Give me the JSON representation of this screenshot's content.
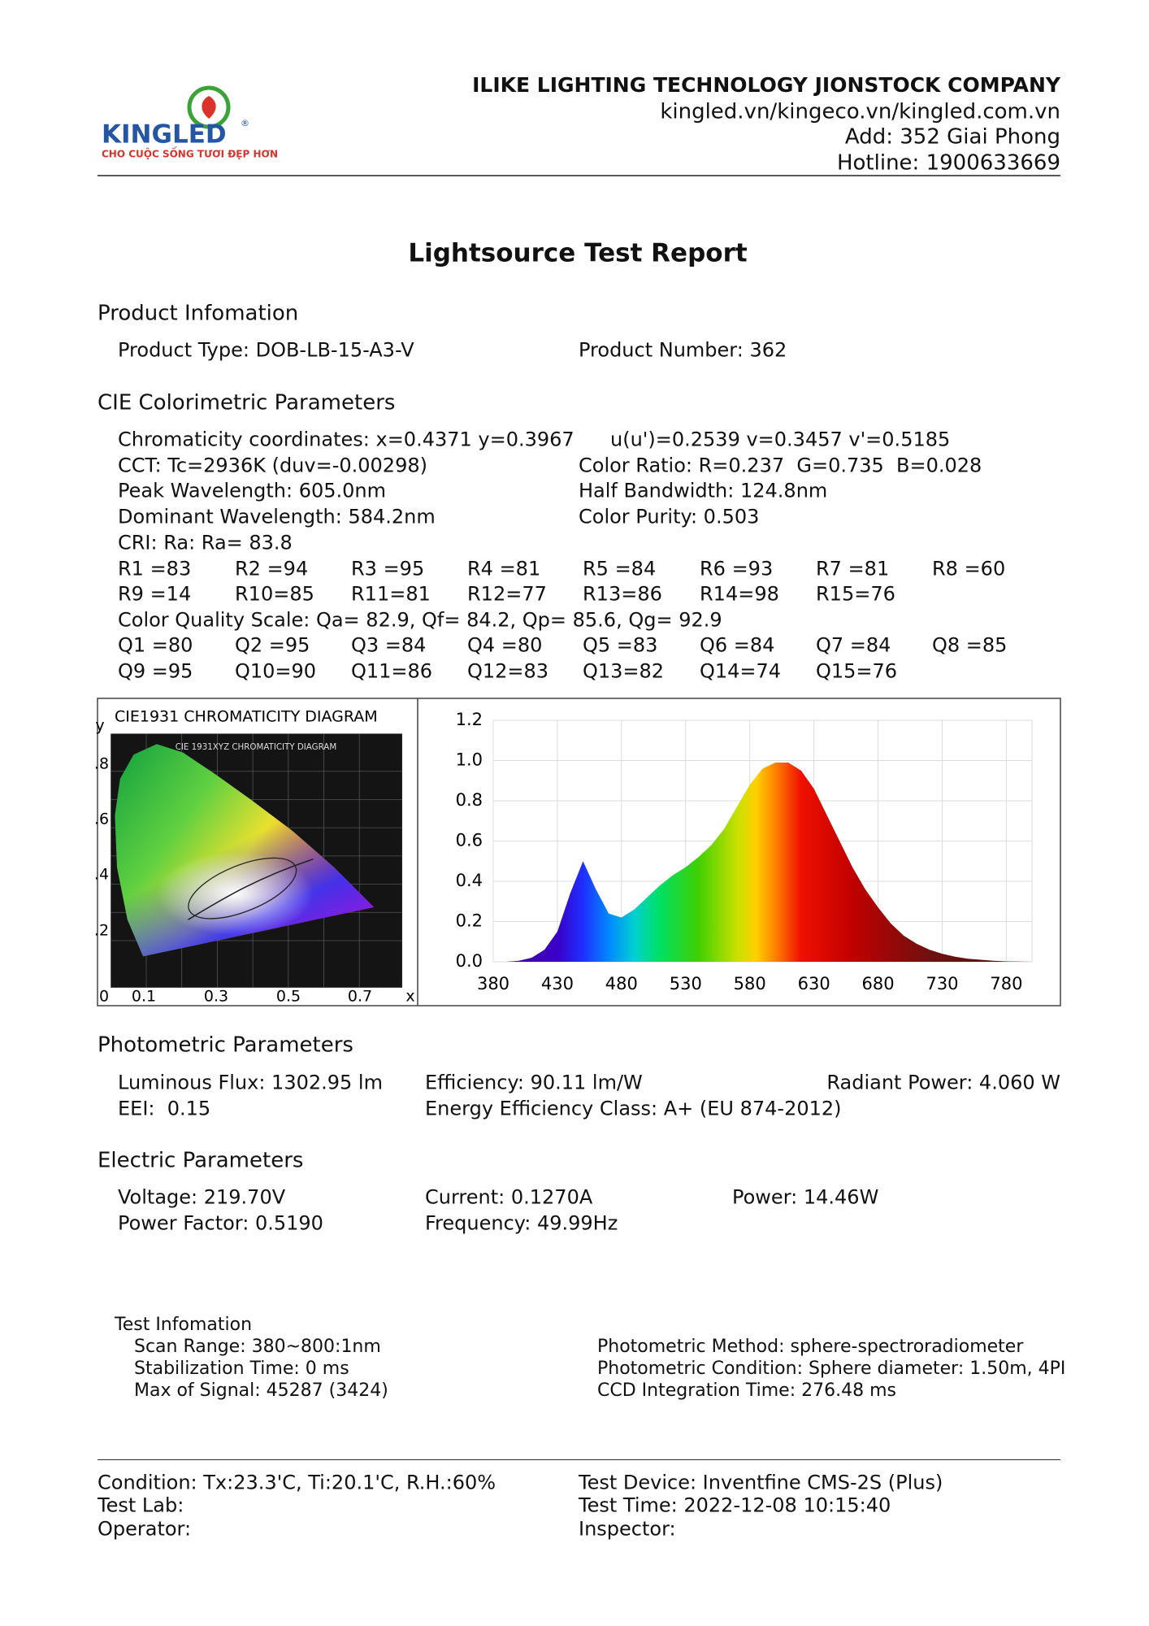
{
  "header": {
    "company": "ILIKE LIGHTING TECHNOLOGY JIONSTOCK COMPANY",
    "website": "kingled.vn/kingeco.vn/kingled.com.vn",
    "address": "Add: 352 Giai Phong",
    "hotline": "Hotline: 1900633669"
  },
  "logo": {
    "name": "KINGLED",
    "registered": "®",
    "tagline": "CHO CUỘC SỐNG TƯƠI ĐẸP HƠN"
  },
  "title": "Lightsource Test Report",
  "product": {
    "heading": "Product Infomation",
    "type": "Product Type: DOB-LB-15-A3-V",
    "number": "Product Number: 362"
  },
  "cie": {
    "heading": "CIE Colorimetric Parameters",
    "lines": [
      [
        "Chromaticity coordinates: x=0.4371 y=0.3967",
        "u(u')=0.2539 v=0.3457 v'=0.5185"
      ],
      [
        "CCT: Tc=2936K (duv=-0.00298)",
        "Color Ratio: R=0.237  G=0.735  B=0.028"
      ],
      [
        "Peak Wavelength: 605.0nm",
        "Half Bandwidth: 124.8nm"
      ],
      [
        "Dominant Wavelength: 584.2nm",
        "Color Purity: 0.503"
      ]
    ],
    "cri": "CRI: Ra: Ra= 83.8",
    "r_rows": [
      [
        "R1 =83",
        "R2 =94",
        "R3 =95",
        "R4 =81",
        "R5 =84",
        "R6 =93",
        "R7 =81",
        "R8 =60"
      ],
      [
        "R9 =14",
        "R10=85",
        "R11=81",
        "R12=77",
        "R13=86",
        "R14=98",
        "R15=76"
      ]
    ],
    "cqs": "Color Quality Scale: Qa= 82.9, Qf= 84.2, Qp= 85.6, Qg= 92.9",
    "q_rows": [
      [
        "Q1 =80",
        "Q2 =95",
        "Q3 =84",
        "Q4 =80",
        "Q5 =83",
        "Q6 =84",
        "Q7 =84",
        "Q8 =85"
      ],
      [
        "Q9 =95",
        "Q10=90",
        "Q11=86",
        "Q12=83",
        "Q13=82",
        "Q14=74",
        "Q15=76"
      ]
    ]
  },
  "cie_diagram": {
    "title": "CIE1931 CHROMATICITY DIAGRAM",
    "inner_title": "CIE 1931XYZ CHROMATICITY DIAGRAM",
    "y_label": "y",
    "x_label": "x",
    "y_ticks": [
      ".8",
      ".6",
      ".4",
      ".2"
    ],
    "x_ticks": [
      "0",
      "0.1",
      "0.3",
      "0.5",
      "0.7"
    ]
  },
  "chart_data": {
    "type": "area",
    "x": [
      380,
      390,
      400,
      410,
      420,
      430,
      440,
      450,
      460,
      470,
      480,
      490,
      500,
      510,
      520,
      530,
      540,
      550,
      560,
      570,
      580,
      590,
      600,
      610,
      620,
      630,
      640,
      650,
      660,
      670,
      680,
      690,
      700,
      710,
      720,
      730,
      740,
      750,
      760,
      770,
      780,
      790,
      800
    ],
    "values": [
      0,
      0,
      0.005,
      0.02,
      0.06,
      0.15,
      0.34,
      0.5,
      0.36,
      0.24,
      0.22,
      0.26,
      0.32,
      0.38,
      0.43,
      0.47,
      0.52,
      0.58,
      0.66,
      0.77,
      0.88,
      0.96,
      0.99,
      0.99,
      0.95,
      0.86,
      0.73,
      0.6,
      0.47,
      0.36,
      0.27,
      0.19,
      0.13,
      0.09,
      0.06,
      0.04,
      0.025,
      0.015,
      0.01,
      0.005,
      0.002,
      0.001,
      0
    ],
    "xlim": [
      380,
      800
    ],
    "ylim": [
      0,
      1.2
    ],
    "xticks": [
      380,
      430,
      480,
      530,
      580,
      630,
      680,
      730,
      780
    ],
    "yticks": [
      {
        "value": 0,
        "label": "0.0"
      },
      0.2,
      0.4,
      0.6,
      0.8,
      {
        "value": 1,
        "label": "1.0"
      },
      1.2
    ],
    "grid": true
  },
  "photometric": {
    "heading": "Photometric Parameters",
    "flux": "Luminous Flux: 1302.95 lm",
    "efficiency": "Efficiency: 90.11 lm/W",
    "radiant": "Radiant Power: 4.060 W",
    "eei": "EEI:  0.15",
    "class": "Energy Efficiency Class: A+ (EU 874-2012)"
  },
  "electric": {
    "heading": "Electric Parameters",
    "voltage": "Voltage: 219.70V",
    "current": "Current: 0.1270A",
    "power": "Power: 14.46W",
    "pf": "Power Factor: 0.5190",
    "frequency": "Frequency: 49.99Hz"
  },
  "test": {
    "heading": "Test Infomation",
    "left": [
      "Scan Range: 380~800:1nm",
      "Stabilization Time: 0 ms",
      "Max of Signal: 45287 (3424)"
    ],
    "right": [
      "Photometric Method: sphere-spectroradiometer",
      "Photometric Condition: Sphere diameter: 1.50m, 4PI",
      "CCD Integration Time: 276.48 ms"
    ]
  },
  "footer": {
    "left": [
      "Condition: Tx:23.3'C, Ti:20.1'C, R.H.:60%",
      "Test Lab:",
      "Operator:"
    ],
    "right": [
      "Test Device: Inventfine CMS-2S (Plus)",
      "Test Time: 2022-12-08 10:15:40",
      "Inspector:"
    ]
  }
}
